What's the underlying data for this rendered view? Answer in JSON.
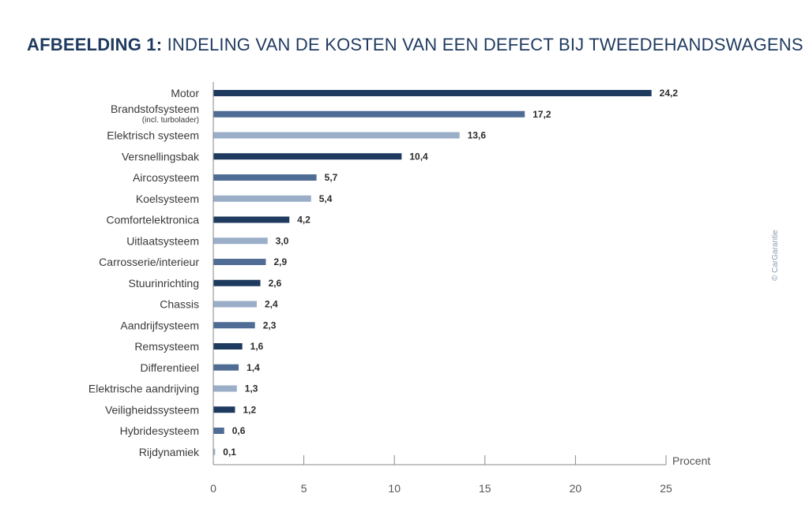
{
  "title": {
    "bold": "AFBEELDING 1:",
    "rest": "INDELING VAN DE KOSTEN VAN EEN DEFECT BIJ TWEEDEHANDSWAGENS"
  },
  "credit": "© CarGarantie",
  "colors": {
    "dark": "#1f3a5f",
    "medium": "#4f6d94",
    "light": "#9aaec8",
    "title": "#1f3a5f"
  },
  "chart_data": {
    "type": "bar",
    "orientation": "horizontal",
    "categories": [
      "Motor",
      "Brandstofsysteem",
      "Elektrisch systeem",
      "Versnellingsbak",
      "Aircosysteem",
      "Koelsysteem",
      "Comfortelektronica",
      "Uitlaatsysteem",
      "Carrosserie/interieur",
      "Stuurinrichting",
      "Chassis",
      "Aandrijfsysteem",
      "Remsysteem",
      "Differentieel",
      "Elektrische aandrijving",
      "Veiligheidssysteem",
      "Hybridesysteem",
      "Rijdynamiek"
    ],
    "category_sublabels": {
      "1": "(incl. turbolader)"
    },
    "values": [
      24.2,
      17.2,
      13.6,
      10.4,
      5.7,
      5.4,
      4.2,
      3.0,
      2.9,
      2.6,
      2.4,
      2.3,
      1.6,
      1.4,
      1.3,
      1.2,
      0.6,
      0.1
    ],
    "value_labels": [
      "24,2",
      "17,2",
      "13,6",
      "10,4",
      "5,7",
      "5,4",
      "4,2",
      "3,0",
      "2,9",
      "2,6",
      "2,4",
      "2,3",
      "1,6",
      "1,4",
      "1,3",
      "1,2",
      "0,6",
      "0,1"
    ],
    "bar_colors": [
      "dark",
      "medium",
      "light",
      "dark",
      "medium",
      "light",
      "dark",
      "light",
      "medium",
      "dark",
      "light",
      "medium",
      "dark",
      "medium",
      "light",
      "dark",
      "medium",
      "light"
    ],
    "xlim": [
      0,
      25
    ],
    "xticks": [
      0,
      5,
      10,
      15,
      20,
      25
    ],
    "xlabel": "Procent",
    "grid": false,
    "legend": false
  }
}
